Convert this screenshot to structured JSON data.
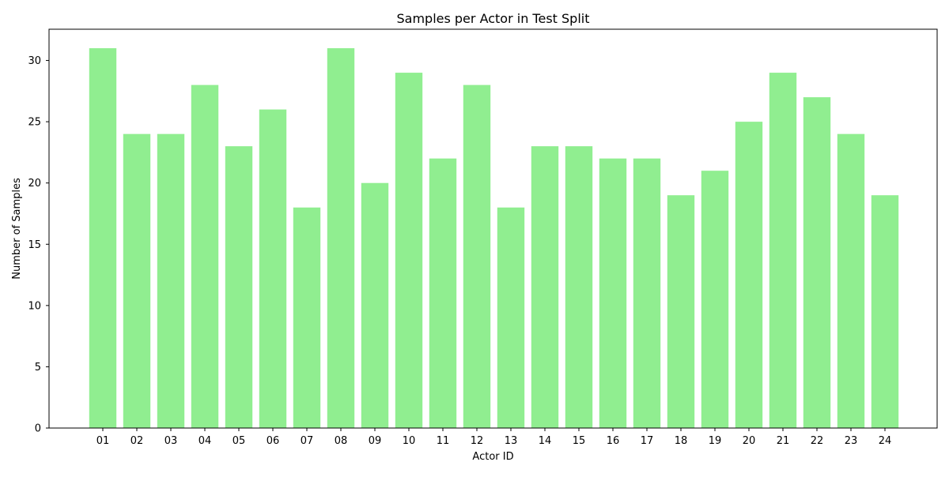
{
  "chart_data": {
    "type": "bar",
    "title": "Samples per Actor in Test Split",
    "xlabel": "Actor ID",
    "ylabel": "Number of Samples",
    "categories": [
      "01",
      "02",
      "03",
      "04",
      "05",
      "06",
      "07",
      "08",
      "09",
      "10",
      "11",
      "12",
      "13",
      "14",
      "15",
      "16",
      "17",
      "18",
      "19",
      "20",
      "21",
      "22",
      "23",
      "24"
    ],
    "values": [
      31,
      24,
      24,
      28,
      23,
      26,
      18,
      31,
      20,
      29,
      22,
      28,
      18,
      23,
      23,
      22,
      22,
      19,
      21,
      25,
      29,
      27,
      24,
      19
    ],
    "ylim": [
      0,
      32.55
    ],
    "yticks": [
      0,
      5,
      10,
      15,
      20,
      25,
      30
    ],
    "ytick_labels": [
      "0",
      "5",
      "10",
      "15",
      "20",
      "25",
      "30"
    ],
    "grid": false,
    "legend": "none",
    "bar_color": "#90ee90"
  }
}
